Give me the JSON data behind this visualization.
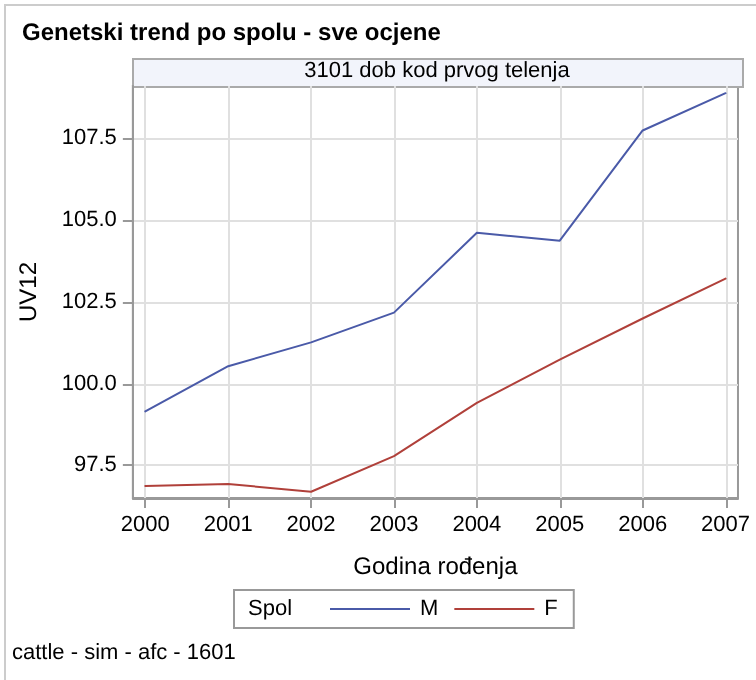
{
  "chart_data": {
    "type": "line",
    "title": "Genetski trend po spolu - sve ocjene",
    "subtitle": "3101 dob kod prvog telenja",
    "xlabel": "Godina rođenja",
    "ylabel": "UV12",
    "legend_title": "Spol",
    "annotations": [
      "cattle - sim - afc - 1601"
    ],
    "x": [
      2000,
      2001,
      2002,
      2003,
      2004,
      2005,
      2006,
      2007
    ],
    "series": [
      {
        "name": "M",
        "color": "#4a5aa8",
        "values": [
          99.15,
          100.53,
          101.26,
          102.17,
          104.61,
          104.37,
          107.74,
          108.88
        ]
      },
      {
        "name": "F",
        "color": "#b0403a",
        "values": [
          96.87,
          96.93,
          96.69,
          97.78,
          99.41,
          100.73,
          101.99,
          103.21
        ]
      }
    ],
    "xlim": [
      1999.85,
      2007.15
    ],
    "xticks": [
      2000,
      2001,
      2002,
      2003,
      2004,
      2005,
      2006,
      2007
    ],
    "ylim": [
      96.5,
      109.1
    ],
    "yticks": [
      {
        "value": 97.5,
        "label": "97.5"
      },
      {
        "value": 100,
        "label": "100.0"
      },
      {
        "value": 102.5,
        "label": "102.5"
      },
      {
        "value": 105,
        "label": "105.0"
      },
      {
        "value": 107.5,
        "label": "107.5"
      }
    ],
    "grid": true,
    "legend": "bottom",
    "marker": "none",
    "line_style": "solid"
  }
}
